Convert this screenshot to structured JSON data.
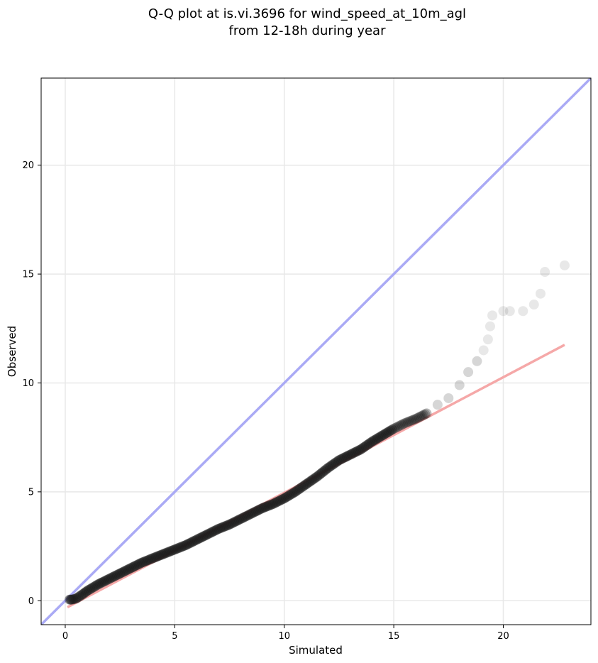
{
  "chart_data": {
    "type": "scatter",
    "title_line1": "Q-Q plot at is.vi.3696 for wind_speed_at_10m_agl",
    "title_line2": "from 12-18h during year",
    "xlabel": "Simulated",
    "ylabel": "Observed",
    "xlim": [
      -1.1,
      24
    ],
    "ylim": [
      -1.1,
      24
    ],
    "xticks": [
      0,
      5,
      10,
      15,
      20
    ],
    "yticks": [
      0,
      5,
      10,
      15,
      20
    ],
    "grid": true,
    "reference_line": {
      "color": "#aaaaf5",
      "slope": 1,
      "intercept": 0
    },
    "fit_line": {
      "color": "#f5a8a8",
      "x0": 0.1,
      "y0": -0.3,
      "x1": 22.8,
      "y1": 11.75
    },
    "points_color": "#1a1a1a",
    "points": [
      [
        0.2,
        0.05
      ],
      [
        0.3,
        0.05
      ],
      [
        0.5,
        0.1
      ],
      [
        0.8,
        0.3
      ],
      [
        1.0,
        0.45
      ],
      [
        1.5,
        0.75
      ],
      [
        2.0,
        1.0
      ],
      [
        2.5,
        1.25
      ],
      [
        3.0,
        1.5
      ],
      [
        3.5,
        1.75
      ],
      [
        4.0,
        1.95
      ],
      [
        4.5,
        2.15
      ],
      [
        5.0,
        2.35
      ],
      [
        5.5,
        2.55
      ],
      [
        6.0,
        2.8
      ],
      [
        6.5,
        3.05
      ],
      [
        7.0,
        3.3
      ],
      [
        7.5,
        3.5
      ],
      [
        8.0,
        3.75
      ],
      [
        8.5,
        4.0
      ],
      [
        9.0,
        4.25
      ],
      [
        9.5,
        4.45
      ],
      [
        10.0,
        4.7
      ],
      [
        10.5,
        5.0
      ],
      [
        11.0,
        5.35
      ],
      [
        11.5,
        5.7
      ],
      [
        12.0,
        6.1
      ],
      [
        12.5,
        6.45
      ],
      [
        13.0,
        6.7
      ],
      [
        13.5,
        6.95
      ],
      [
        14.0,
        7.3
      ],
      [
        14.5,
        7.6
      ],
      [
        15.0,
        7.9
      ],
      [
        15.5,
        8.15
      ],
      [
        16.0,
        8.35
      ],
      [
        16.5,
        8.6
      ],
      [
        17.0,
        9.0
      ],
      [
        17.5,
        9.3
      ],
      [
        18.0,
        9.9
      ],
      [
        18.4,
        10.5
      ],
      [
        18.8,
        11.0
      ],
      [
        19.1,
        11.5
      ],
      [
        19.3,
        12.0
      ],
      [
        19.4,
        12.6
      ],
      [
        19.5,
        13.1
      ],
      [
        20.0,
        13.3
      ],
      [
        20.3,
        13.3
      ],
      [
        20.9,
        13.3
      ],
      [
        21.4,
        13.6
      ],
      [
        21.7,
        14.1
      ],
      [
        21.9,
        15.1
      ],
      [
        22.8,
        15.4
      ]
    ]
  }
}
